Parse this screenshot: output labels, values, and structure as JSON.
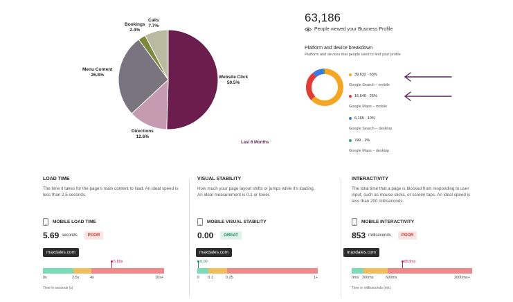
{
  "pie_chart": {
    "slices": [
      {
        "label": "Website Click",
        "pct": "50.5%",
        "value": 50.5,
        "color": "#6b1e4d"
      },
      {
        "label": "Directions",
        "pct": "12.6%",
        "value": 12.6,
        "color": "#c49bb1"
      },
      {
        "label": "Menu Content",
        "pct": "26.8%",
        "value": 26.8,
        "color": "#7a7480"
      },
      {
        "label": "Bookings",
        "pct": "2.4%",
        "value": 2.4,
        "color": "#7a8a3a"
      },
      {
        "label": "Calls",
        "pct": "7.7%",
        "value": 7.7,
        "color": "#b9bba0"
      }
    ],
    "period": "Last 6 Months"
  },
  "profile": {
    "total": "63,186",
    "viewed_text": "People viewed your Business Profile",
    "breakdown_title": "Platform and device breakdown",
    "breakdown_sub": "Platform and devices that people used to find your profile",
    "items": [
      {
        "value": "39,632 · 63%",
        "desc": "Google Search – mobile",
        "share": 63,
        "color": "#f5a623"
      },
      {
        "value": "16,640 · 26%",
        "desc": "Google Maps – mobile",
        "share": 26,
        "color": "#e53935"
      },
      {
        "value": "6,165 · 10%",
        "desc": "Google Search – desktop",
        "share": 10,
        "color": "#3d7ae0"
      },
      {
        "value": "749 · 1%",
        "desc": "Google Maps – desktop",
        "share": 1,
        "color": "#2fa86a"
      }
    ]
  },
  "load_time": {
    "title": "LOAD TIME",
    "desc": "The time it takes for the page's main content to load. An ideal speed is less than 2.5 seconds.",
    "metric_label": "MOBILE LOAD TIME",
    "value": "5.69",
    "unit": "seconds",
    "badge": "POOR",
    "tooltip": "maxdales.com",
    "marker_text": "5.69s",
    "ticks": [
      "0s",
      "2.5s",
      "4s",
      "10s+"
    ],
    "axis_label": "Time in seconds (s)"
  },
  "visual_stability": {
    "title": "VISUAL STABILITY",
    "desc": "How much your page layout shifts or jumps while it's loading. An ideal measurement is 0.1 or lower.",
    "metric_label": "MOBILE VISUAL STABILITY",
    "value": "0.00",
    "badge": "GREAT",
    "tooltip": "maxdales.com",
    "marker_text": "0.00",
    "ticks": [
      "0",
      "0.1",
      "0.25",
      "1+"
    ]
  },
  "interactivity": {
    "title": "INTERACTIVITY",
    "desc": "The total time that a page is blocked from responding to user input, such as mouse clicks, or screen taps. An ideal speed is less than 200 milliseconds.",
    "metric_label": "MOBILE INTERACTIVITY",
    "value": "853",
    "unit": "milliseconds",
    "badge": "POOR",
    "tooltip": "maxdales.com",
    "marker_text": "853ms",
    "ticks": [
      "0ms",
      "200ms",
      "600ms",
      "2000ms+"
    ],
    "axis_label": "Time in milliseconds (ms)"
  }
}
